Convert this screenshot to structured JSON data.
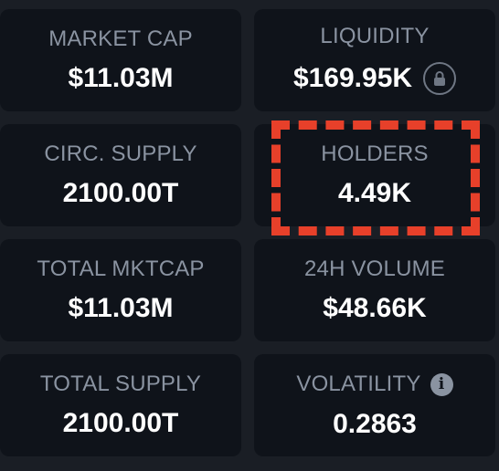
{
  "stats": {
    "market_cap": {
      "label": "MARKET CAP",
      "value": "$11.03M"
    },
    "liquidity": {
      "label": "LIQUIDITY",
      "value": "$169.95K",
      "icon": "lock-icon"
    },
    "circ_supply": {
      "label": "CIRC. SUPPLY",
      "value": "2100.00T"
    },
    "holders": {
      "label": "HOLDERS",
      "value": "4.49K"
    },
    "total_mktcap": {
      "label": "TOTAL MKTCAP",
      "value": "$11.03M"
    },
    "volume_24h": {
      "label": "24H VOLUME",
      "value": "$48.66K"
    },
    "total_supply": {
      "label": "TOTAL SUPPLY",
      "value": "2100.00T"
    },
    "volatility": {
      "label": "VOLATILITY",
      "value": "0.2863",
      "icon": "info-icon",
      "icon_glyph": "i"
    }
  },
  "colors": {
    "background": "#1a1e25",
    "card": "#0f131a",
    "label": "#8a93a1",
    "value": "#ffffff",
    "highlight": "#e7402a"
  }
}
